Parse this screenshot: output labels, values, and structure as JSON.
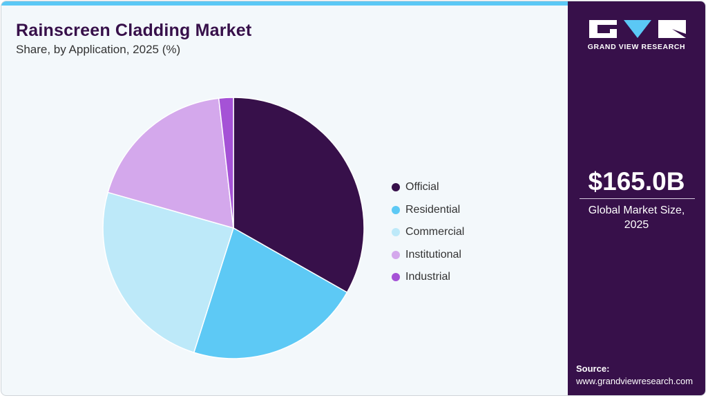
{
  "header": {
    "title": "Rainscreen Cladding Market",
    "subtitle": "Share, by Application, 2025 (%)"
  },
  "sidebar": {
    "logo_text": "GRAND VIEW RESEARCH",
    "market_size": "$165.0B",
    "market_caption_line1": "Global Market Size,",
    "market_caption_line2": "2025",
    "source_label": "Source:",
    "source_url": "www.grandviewresearch.com"
  },
  "colors": {
    "accent_bar": "#5bc8f5",
    "sidebar_bg": "#37104a",
    "title": "#37104a",
    "background": "#f3f8fb"
  },
  "chart_data": {
    "type": "pie",
    "title": "Rainscreen Cladding Market",
    "subtitle": "Share, by Application, 2025 (%)",
    "categories": [
      "Official",
      "Residential",
      "Commercial",
      "Institutional",
      "Industrial"
    ],
    "values": [
      33.2,
      21.7,
      24.5,
      18.8,
      1.8
    ],
    "colors": [
      "#37104a",
      "#5dc9f5",
      "#bde9f9",
      "#d4a8ec",
      "#a552d6"
    ],
    "start_angle": "top (12 o'clock), clockwise",
    "legend_position": "right"
  }
}
